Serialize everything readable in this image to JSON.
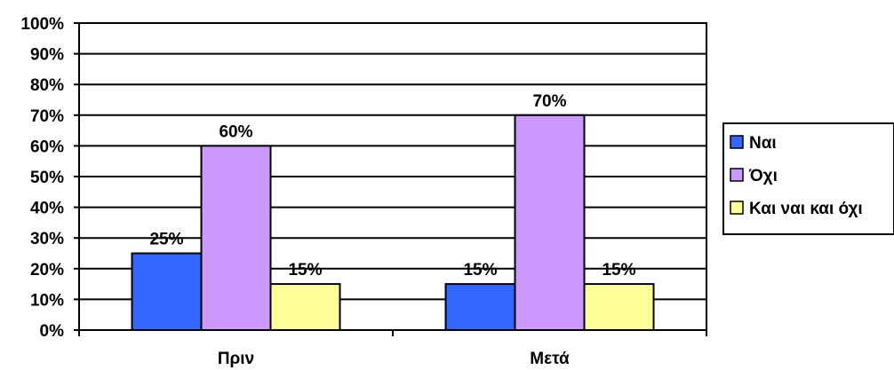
{
  "chart_data": {
    "type": "bar",
    "categories": [
      "Πριν",
      "Μετά"
    ],
    "series": [
      {
        "name": "Ναι",
        "values": [
          25,
          15
        ],
        "color": "#3366FF"
      },
      {
        "name": "Όχι",
        "values": [
          60,
          70
        ],
        "color": "#CC99FF"
      },
      {
        "name": "Και ναι και όχι",
        "values": [
          15,
          15
        ],
        "color": "#FFFF99"
      }
    ],
    "data_labels": [
      [
        "25%",
        "15%"
      ],
      [
        "60%",
        "70%"
      ],
      [
        "15%",
        "15%"
      ]
    ],
    "y_ticks": [
      "0%",
      "10%",
      "20%",
      "30%",
      "40%",
      "50%",
      "60%",
      "70%",
      "80%",
      "90%",
      "100%"
    ],
    "ylim": [
      0,
      100
    ],
    "grid": true,
    "legend_position": "right"
  }
}
